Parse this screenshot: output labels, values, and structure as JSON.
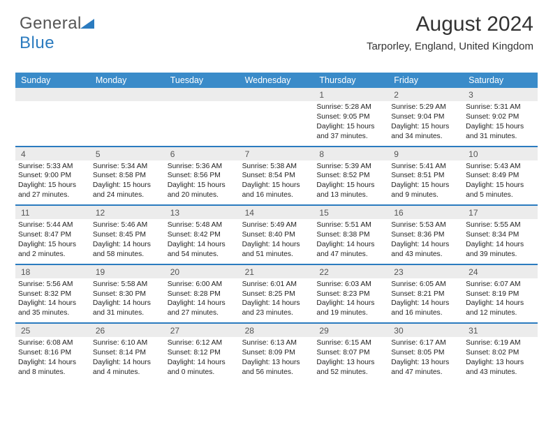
{
  "logo": {
    "text_gray": "General",
    "text_blue": "Blue"
  },
  "title": "August 2024",
  "location": "Tarporley, England, United Kingdom",
  "colors": {
    "header_bg": "#3a8bc9",
    "accent_line": "#2b7bbf",
    "daynum_bg": "#ececec",
    "text": "#222222"
  },
  "day_labels": [
    "Sunday",
    "Monday",
    "Tuesday",
    "Wednesday",
    "Thursday",
    "Friday",
    "Saturday"
  ],
  "weeks": [
    [
      {
        "n": "",
        "sr": "",
        "ss": "",
        "dl": ""
      },
      {
        "n": "",
        "sr": "",
        "ss": "",
        "dl": ""
      },
      {
        "n": "",
        "sr": "",
        "ss": "",
        "dl": ""
      },
      {
        "n": "",
        "sr": "",
        "ss": "",
        "dl": ""
      },
      {
        "n": "1",
        "sr": "Sunrise: 5:28 AM",
        "ss": "Sunset: 9:05 PM",
        "dl": "Daylight: 15 hours and 37 minutes."
      },
      {
        "n": "2",
        "sr": "Sunrise: 5:29 AM",
        "ss": "Sunset: 9:04 PM",
        "dl": "Daylight: 15 hours and 34 minutes."
      },
      {
        "n": "3",
        "sr": "Sunrise: 5:31 AM",
        "ss": "Sunset: 9:02 PM",
        "dl": "Daylight: 15 hours and 31 minutes."
      }
    ],
    [
      {
        "n": "4",
        "sr": "Sunrise: 5:33 AM",
        "ss": "Sunset: 9:00 PM",
        "dl": "Daylight: 15 hours and 27 minutes."
      },
      {
        "n": "5",
        "sr": "Sunrise: 5:34 AM",
        "ss": "Sunset: 8:58 PM",
        "dl": "Daylight: 15 hours and 24 minutes."
      },
      {
        "n": "6",
        "sr": "Sunrise: 5:36 AM",
        "ss": "Sunset: 8:56 PM",
        "dl": "Daylight: 15 hours and 20 minutes."
      },
      {
        "n": "7",
        "sr": "Sunrise: 5:38 AM",
        "ss": "Sunset: 8:54 PM",
        "dl": "Daylight: 15 hours and 16 minutes."
      },
      {
        "n": "8",
        "sr": "Sunrise: 5:39 AM",
        "ss": "Sunset: 8:52 PM",
        "dl": "Daylight: 15 hours and 13 minutes."
      },
      {
        "n": "9",
        "sr": "Sunrise: 5:41 AM",
        "ss": "Sunset: 8:51 PM",
        "dl": "Daylight: 15 hours and 9 minutes."
      },
      {
        "n": "10",
        "sr": "Sunrise: 5:43 AM",
        "ss": "Sunset: 8:49 PM",
        "dl": "Daylight: 15 hours and 5 minutes."
      }
    ],
    [
      {
        "n": "11",
        "sr": "Sunrise: 5:44 AM",
        "ss": "Sunset: 8:47 PM",
        "dl": "Daylight: 15 hours and 2 minutes."
      },
      {
        "n": "12",
        "sr": "Sunrise: 5:46 AM",
        "ss": "Sunset: 8:45 PM",
        "dl": "Daylight: 14 hours and 58 minutes."
      },
      {
        "n": "13",
        "sr": "Sunrise: 5:48 AM",
        "ss": "Sunset: 8:42 PM",
        "dl": "Daylight: 14 hours and 54 minutes."
      },
      {
        "n": "14",
        "sr": "Sunrise: 5:49 AM",
        "ss": "Sunset: 8:40 PM",
        "dl": "Daylight: 14 hours and 51 minutes."
      },
      {
        "n": "15",
        "sr": "Sunrise: 5:51 AM",
        "ss": "Sunset: 8:38 PM",
        "dl": "Daylight: 14 hours and 47 minutes."
      },
      {
        "n": "16",
        "sr": "Sunrise: 5:53 AM",
        "ss": "Sunset: 8:36 PM",
        "dl": "Daylight: 14 hours and 43 minutes."
      },
      {
        "n": "17",
        "sr": "Sunrise: 5:55 AM",
        "ss": "Sunset: 8:34 PM",
        "dl": "Daylight: 14 hours and 39 minutes."
      }
    ],
    [
      {
        "n": "18",
        "sr": "Sunrise: 5:56 AM",
        "ss": "Sunset: 8:32 PM",
        "dl": "Daylight: 14 hours and 35 minutes."
      },
      {
        "n": "19",
        "sr": "Sunrise: 5:58 AM",
        "ss": "Sunset: 8:30 PM",
        "dl": "Daylight: 14 hours and 31 minutes."
      },
      {
        "n": "20",
        "sr": "Sunrise: 6:00 AM",
        "ss": "Sunset: 8:28 PM",
        "dl": "Daylight: 14 hours and 27 minutes."
      },
      {
        "n": "21",
        "sr": "Sunrise: 6:01 AM",
        "ss": "Sunset: 8:25 PM",
        "dl": "Daylight: 14 hours and 23 minutes."
      },
      {
        "n": "22",
        "sr": "Sunrise: 6:03 AM",
        "ss": "Sunset: 8:23 PM",
        "dl": "Daylight: 14 hours and 19 minutes."
      },
      {
        "n": "23",
        "sr": "Sunrise: 6:05 AM",
        "ss": "Sunset: 8:21 PM",
        "dl": "Daylight: 14 hours and 16 minutes."
      },
      {
        "n": "24",
        "sr": "Sunrise: 6:07 AM",
        "ss": "Sunset: 8:19 PM",
        "dl": "Daylight: 14 hours and 12 minutes."
      }
    ],
    [
      {
        "n": "25",
        "sr": "Sunrise: 6:08 AM",
        "ss": "Sunset: 8:16 PM",
        "dl": "Daylight: 14 hours and 8 minutes."
      },
      {
        "n": "26",
        "sr": "Sunrise: 6:10 AM",
        "ss": "Sunset: 8:14 PM",
        "dl": "Daylight: 14 hours and 4 minutes."
      },
      {
        "n": "27",
        "sr": "Sunrise: 6:12 AM",
        "ss": "Sunset: 8:12 PM",
        "dl": "Daylight: 14 hours and 0 minutes."
      },
      {
        "n": "28",
        "sr": "Sunrise: 6:13 AM",
        "ss": "Sunset: 8:09 PM",
        "dl": "Daylight: 13 hours and 56 minutes."
      },
      {
        "n": "29",
        "sr": "Sunrise: 6:15 AM",
        "ss": "Sunset: 8:07 PM",
        "dl": "Daylight: 13 hours and 52 minutes."
      },
      {
        "n": "30",
        "sr": "Sunrise: 6:17 AM",
        "ss": "Sunset: 8:05 PM",
        "dl": "Daylight: 13 hours and 47 minutes."
      },
      {
        "n": "31",
        "sr": "Sunrise: 6:19 AM",
        "ss": "Sunset: 8:02 PM",
        "dl": "Daylight: 13 hours and 43 minutes."
      }
    ]
  ]
}
